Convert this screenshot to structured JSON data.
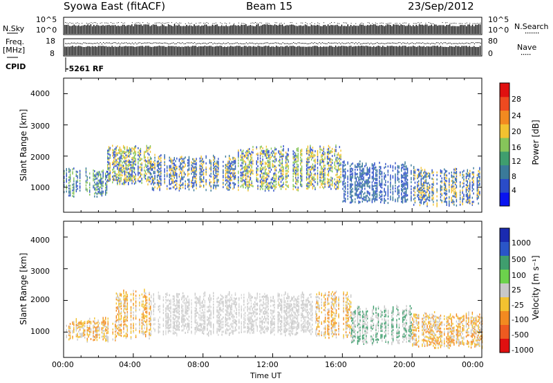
{
  "header": {
    "title": "Syowa East (fitACF)",
    "beam": "Beam 15",
    "date": "23/Sep/2012"
  },
  "strip": {
    "nsky_label": "N.Sky",
    "nsky_ticks": [
      "10^5",
      "10^0"
    ],
    "nsearch_label": "N.Search",
    "nsearch_ticks": [
      "10^5",
      "10^0"
    ],
    "freq_label": "Freq.",
    "freq_unit": "[MHz]",
    "freq_ticks": [
      "18",
      "8"
    ],
    "nave_label": "Nave",
    "nave_ticks": [
      "80",
      "0"
    ],
    "cpid_label": "CPID",
    "cpid_value": "-5261 RF"
  },
  "chart_data": [
    {
      "type": "heatmap",
      "name": "power-panel",
      "ylabel": "Slant Range [km]",
      "ylim": [
        200,
        4500
      ],
      "yticks": [
        "1000",
        "2000",
        "3000",
        "4000"
      ],
      "xlim": [
        0,
        24
      ],
      "colorbar_label": "Power [dB]",
      "colorbar_ticks": [
        "4",
        "8",
        "12",
        "16",
        "20",
        "24",
        "28"
      ],
      "colorbar_colors": [
        "#0a14f0",
        "#2a4cc8",
        "#3a7a99",
        "#3f9e6e",
        "#86c55a",
        "#f2c230",
        "#f28a20",
        "#ee4a20",
        "#e01010"
      ],
      "echo_regions": [
        {
          "t0": 0.0,
          "t1": 2.5,
          "r0": 800,
          "r1": 1600,
          "colors": [
            "#2a4cc8",
            "#3a7a99",
            "#86c55a"
          ]
        },
        {
          "t0": 2.5,
          "t1": 5.0,
          "r0": 1200,
          "r1": 2300,
          "colors": [
            "#2a4cc8",
            "#86c55a",
            "#f2c230"
          ]
        },
        {
          "t0": 5.0,
          "t1": 10.0,
          "r0": 1000,
          "r1": 2000,
          "colors": [
            "#2a4cc8",
            "#3a7a99",
            "#f2c230"
          ]
        },
        {
          "t0": 10.0,
          "t1": 16.0,
          "r0": 1000,
          "r1": 2300,
          "colors": [
            "#2a4cc8",
            "#86c55a",
            "#f2c230"
          ]
        },
        {
          "t0": 16.0,
          "t1": 20.0,
          "r0": 600,
          "r1": 1800,
          "colors": [
            "#2a4cc8",
            "#3a7a99"
          ]
        },
        {
          "t0": 20.0,
          "t1": 24.0,
          "r0": 500,
          "r1": 1600,
          "colors": [
            "#2a4cc8",
            "#3a7a99",
            "#f2c230"
          ]
        }
      ]
    },
    {
      "type": "heatmap",
      "name": "velocity-panel",
      "ylabel": "Slant Range [km]",
      "ylim": [
        200,
        4500
      ],
      "yticks": [
        "1000",
        "2000",
        "3000",
        "4000"
      ],
      "xlim": [
        0,
        24
      ],
      "xticks": [
        "00:00",
        "04:00",
        "08:00",
        "12:00",
        "16:00",
        "20:00",
        "00:00"
      ],
      "xlabel": "Time UT",
      "colorbar_label": "Velocity [m s⁻¹]",
      "colorbar_ticks": [
        "1000",
        "500",
        "100",
        "25",
        "-25",
        "-100",
        "-500",
        "-1000"
      ],
      "colorbar_colors": [
        "#1a2ab0",
        "#2a55c8",
        "#3f9e6e",
        "#6cd24c",
        "#c8c8c8",
        "#f2c230",
        "#f28a20",
        "#ee5a20",
        "#e01010"
      ],
      "echo_regions": [
        {
          "t0": 0.0,
          "t1": 3.0,
          "r0": 800,
          "r1": 1400,
          "colors": [
            "#f2c230",
            "#f28a20",
            "#c8c8c8"
          ]
        },
        {
          "t0": 3.0,
          "t1": 5.0,
          "r0": 900,
          "r1": 2300,
          "colors": [
            "#f2c230",
            "#c8c8c8",
            "#f28a20"
          ]
        },
        {
          "t0": 5.0,
          "t1": 14.5,
          "r0": 1000,
          "r1": 2200,
          "colors": [
            "#c8c8c8",
            "#d9d9d9"
          ]
        },
        {
          "t0": 14.5,
          "t1": 16.5,
          "r0": 900,
          "r1": 2300,
          "colors": [
            "#f28a20",
            "#f2c230",
            "#c8c8c8"
          ]
        },
        {
          "t0": 16.5,
          "t1": 20.0,
          "r0": 700,
          "r1": 1800,
          "colors": [
            "#c8c8c8",
            "#3f9e6e"
          ]
        },
        {
          "t0": 20.0,
          "t1": 24.0,
          "r0": 600,
          "r1": 1600,
          "colors": [
            "#f28a20",
            "#f2c230",
            "#c8c8c8"
          ]
        }
      ]
    }
  ]
}
